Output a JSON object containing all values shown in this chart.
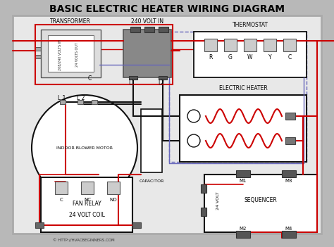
{
  "title": "BASIC ELECTRIC HEATER WIRING DIAGRAM",
  "background_color": "#b8b8b8",
  "diagram_bg": "#e8e8e8",
  "title_fontsize": 10,
  "copyright": "© HTTP://HVACBEGINNERS.COM",
  "wire_colors": {
    "red": "#cc0000",
    "blue": "#6666bb",
    "black": "#111111",
    "brown": "#8B4513"
  },
  "thermostat_terminals": [
    "R",
    "G",
    "W",
    "Y",
    "C"
  ],
  "fan_relay_terminals": [
    "C",
    "NC",
    "NO"
  ],
  "seq_top": [
    "M1",
    "M3"
  ],
  "seq_bot": [
    "M2",
    "M4"
  ]
}
